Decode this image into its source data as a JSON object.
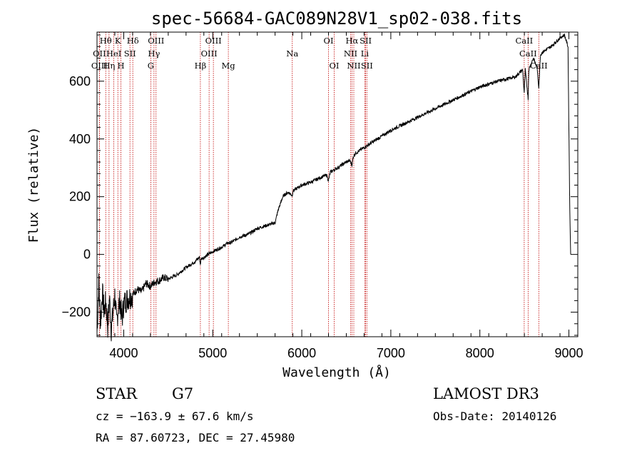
{
  "chart_data": {
    "type": "line",
    "title": "spec-56684-GAC089N28V1_sp02-038.fits",
    "xlabel": "Wavelength (Å)",
    "ylabel": "Flux (relative)",
    "xlim": [
      3700,
      9100
    ],
    "ylim": [
      -285,
      770
    ],
    "xticks": [
      4000,
      5000,
      6000,
      7000,
      8000,
      9000
    ],
    "xtick_labels": [
      "4000",
      "5000",
      "6000",
      "7000",
      "8000",
      "9000"
    ],
    "yticks": [
      -200,
      0,
      200,
      400,
      600
    ],
    "ytick_labels": [
      "−200",
      "0",
      "200",
      "400",
      "600"
    ],
    "grid": false,
    "series": [
      {
        "name": "spectrum",
        "x": [
          3700,
          3720,
          3740,
          3760,
          3780,
          3800,
          3820,
          3840,
          3860,
          3880,
          3900,
          3920,
          3940,
          3960,
          3980,
          4000,
          4050,
          4100,
          4150,
          4200,
          4250,
          4300,
          4350,
          4400,
          4450,
          4500,
          4600,
          4700,
          4800,
          4850,
          4860,
          4870,
          4900,
          5000,
          5100,
          5170,
          5200,
          5300,
          5400,
          5500,
          5600,
          5700,
          5720,
          5740,
          5760,
          5780,
          5800,
          5820,
          5850,
          5893,
          5900,
          5950,
          6000,
          6100,
          6200,
          6280,
          6300,
          6320,
          6400,
          6500,
          6540,
          6563,
          6580,
          6600,
          6700,
          6800,
          6900,
          7000,
          7200,
          7400,
          7600,
          7800,
          8000,
          8200,
          8400,
          8480,
          8498,
          8510,
          8542,
          8550,
          8600,
          8640,
          8662,
          8680,
          8700,
          8800,
          8900,
          8950,
          8990,
          9010,
          9020
        ],
        "y": [
          -270,
          -100,
          -240,
          -130,
          -200,
          -160,
          -250,
          -150,
          -260,
          -200,
          -140,
          -240,
          -180,
          -160,
          -230,
          -170,
          -150,
          -140,
          -120,
          -130,
          -100,
          -110,
          -95,
          -90,
          -80,
          -85,
          -70,
          -45,
          -25,
          -10,
          -35,
          -15,
          -10,
          10,
          25,
          40,
          40,
          60,
          70,
          90,
          100,
          110,
          135,
          160,
          175,
          195,
          205,
          210,
          215,
          205,
          220,
          230,
          240,
          250,
          265,
          275,
          255,
          285,
          300,
          320,
          325,
          310,
          340,
          350,
          370,
          390,
          410,
          430,
          460,
          490,
          520,
          550,
          580,
          600,
          615,
          640,
          560,
          640,
          540,
          640,
          680,
          650,
          580,
          690,
          700,
          720,
          750,
          760,
          720,
          150,
          0
        ]
      }
    ],
    "spectral_lines": [
      {
        "label": "Hθ",
        "wavelength": 3798,
        "row": 0
      },
      {
        "label": "OII",
        "wavelength": 3727,
        "row": 1
      },
      {
        "label": "OIII",
        "wavelength": 3727,
        "row": 2
      },
      {
        "label": "K",
        "wavelength": 3934,
        "row": 0
      },
      {
        "label": "HeI",
        "wavelength": 3889,
        "row": 1
      },
      {
        "label": "Hη",
        "wavelength": 3835,
        "row": 2
      },
      {
        "label": "Hδ",
        "wavelength": 4102,
        "row": 0
      },
      {
        "label": "SII",
        "wavelength": 4070,
        "row": 1
      },
      {
        "label": "H",
        "wavelength": 3969,
        "row": 2
      },
      {
        "label": "OIII",
        "wavelength": 4363,
        "row": 0
      },
      {
        "label": "Hγ",
        "wavelength": 4340,
        "row": 1
      },
      {
        "label": "G",
        "wavelength": 4304,
        "row": 2
      },
      {
        "label": "OIII",
        "wavelength": 5007,
        "row": 0
      },
      {
        "label": "OIII",
        "wavelength": 4959,
        "row": 1
      },
      {
        "label": "Hβ",
        "wavelength": 4861,
        "row": 2
      },
      {
        "label": "Mg",
        "wavelength": 5175,
        "row": 2
      },
      {
        "label": "Na",
        "wavelength": 5893,
        "row": 1
      },
      {
        "label": "OI",
        "wavelength": 6300,
        "row": 0
      },
      {
        "label": "OI",
        "wavelength": 6364,
        "row": 2
      },
      {
        "label": "Hα",
        "wavelength": 6563,
        "row": 0
      },
      {
        "label": "SII",
        "wavelength": 6717,
        "row": 0
      },
      {
        "label": "NII",
        "wavelength": 6548,
        "row": 1
      },
      {
        "label": "Li",
        "wavelength": 6708,
        "row": 1
      },
      {
        "label": "NII",
        "wavelength": 6584,
        "row": 2
      },
      {
        "label": "SII",
        "wavelength": 6731,
        "row": 2
      },
      {
        "label": "CaII",
        "wavelength": 8498,
        "row": 0
      },
      {
        "label": "CaII",
        "wavelength": 8542,
        "row": 1
      },
      {
        "label": "CaII",
        "wavelength": 8662,
        "row": 2
      }
    ]
  },
  "info": {
    "object_class": "STAR",
    "subclass": "G7",
    "survey": "LAMOST DR3",
    "cz": "cz = −163.9 ± 67.6 km/s",
    "obs_date": "Obs-Date: 20140126",
    "radec": "RA =  87.60723, DEC =  27.45980"
  },
  "colors": {
    "spectrum": "#000000",
    "marker_line": "#c00000",
    "axis": "#000000"
  }
}
